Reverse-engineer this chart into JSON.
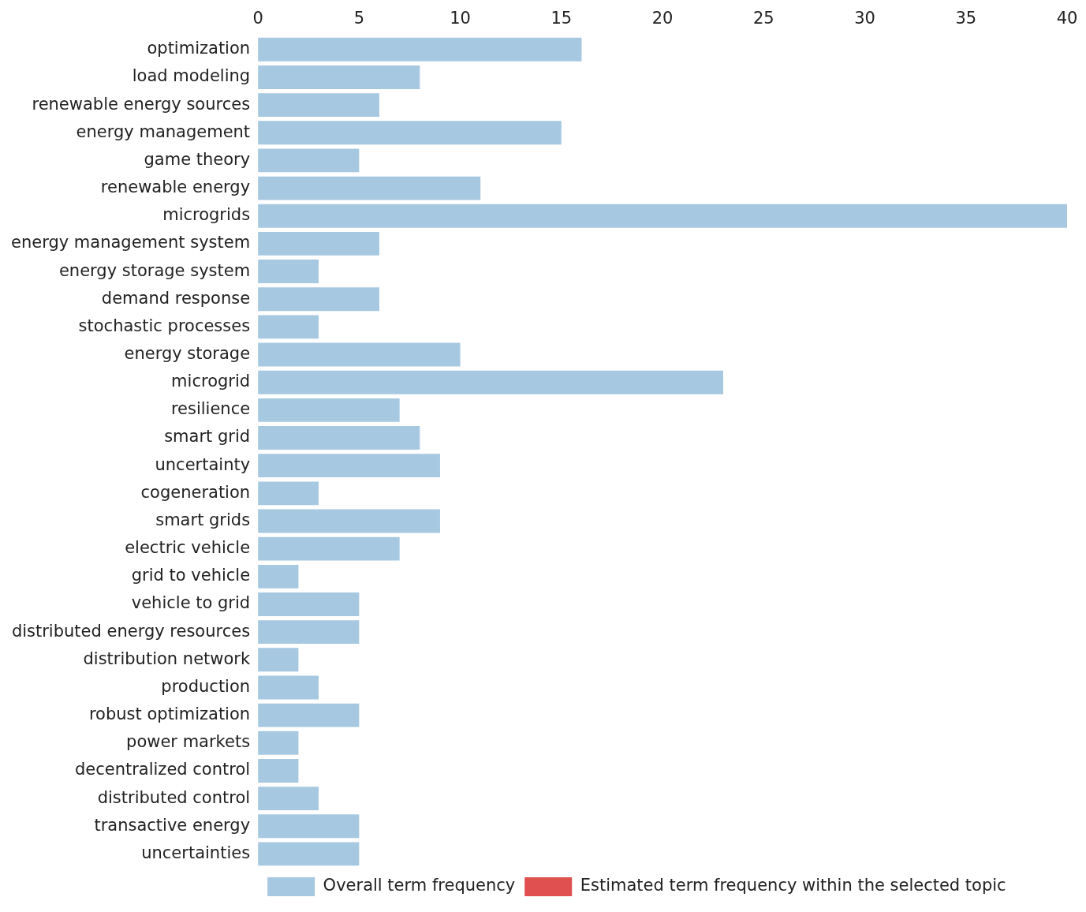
{
  "chart_data": {
    "type": "bar",
    "orientation": "horizontal",
    "categories": [
      "optimization",
      "load modeling",
      "renewable energy sources",
      "energy management",
      "game theory",
      "renewable energy",
      "microgrids",
      "energy management system",
      "energy storage system",
      "demand response",
      "stochastic processes",
      "energy storage",
      "microgrid",
      "resilience",
      "smart grid",
      "uncertainty",
      "cogeneration",
      "smart grids",
      "electric vehicle",
      "grid to vehicle",
      "vehicle to grid",
      "distributed energy resources",
      "distribution network",
      "production",
      "robust optimization",
      "power markets",
      "decentralized control",
      "distributed control",
      "transactive energy",
      "uncertainties"
    ],
    "series": [
      {
        "name": "Overall term frequency",
        "color": "#a6c8e0",
        "values": [
          16,
          8,
          6,
          15,
          5,
          11,
          40,
          6,
          3,
          6,
          3,
          10,
          23,
          7,
          8,
          9,
          3,
          9,
          7,
          2,
          5,
          5,
          2,
          3,
          5,
          2,
          2,
          3,
          5,
          5
        ]
      },
      {
        "name": "Estimated term frequency within the selected topic",
        "color": "#e05050",
        "values": [
          null,
          null,
          null,
          null,
          null,
          null,
          null,
          null,
          null,
          null,
          null,
          null,
          null,
          null,
          null,
          null,
          null,
          null,
          null,
          null,
          null,
          null,
          null,
          null,
          null,
          null,
          null,
          null,
          null,
          null
        ]
      }
    ],
    "xlim": [
      0,
      40
    ],
    "xticks": [
      0,
      5,
      10,
      15,
      20,
      25,
      30,
      35,
      40
    ],
    "grid": false,
    "legend": "bottom"
  }
}
